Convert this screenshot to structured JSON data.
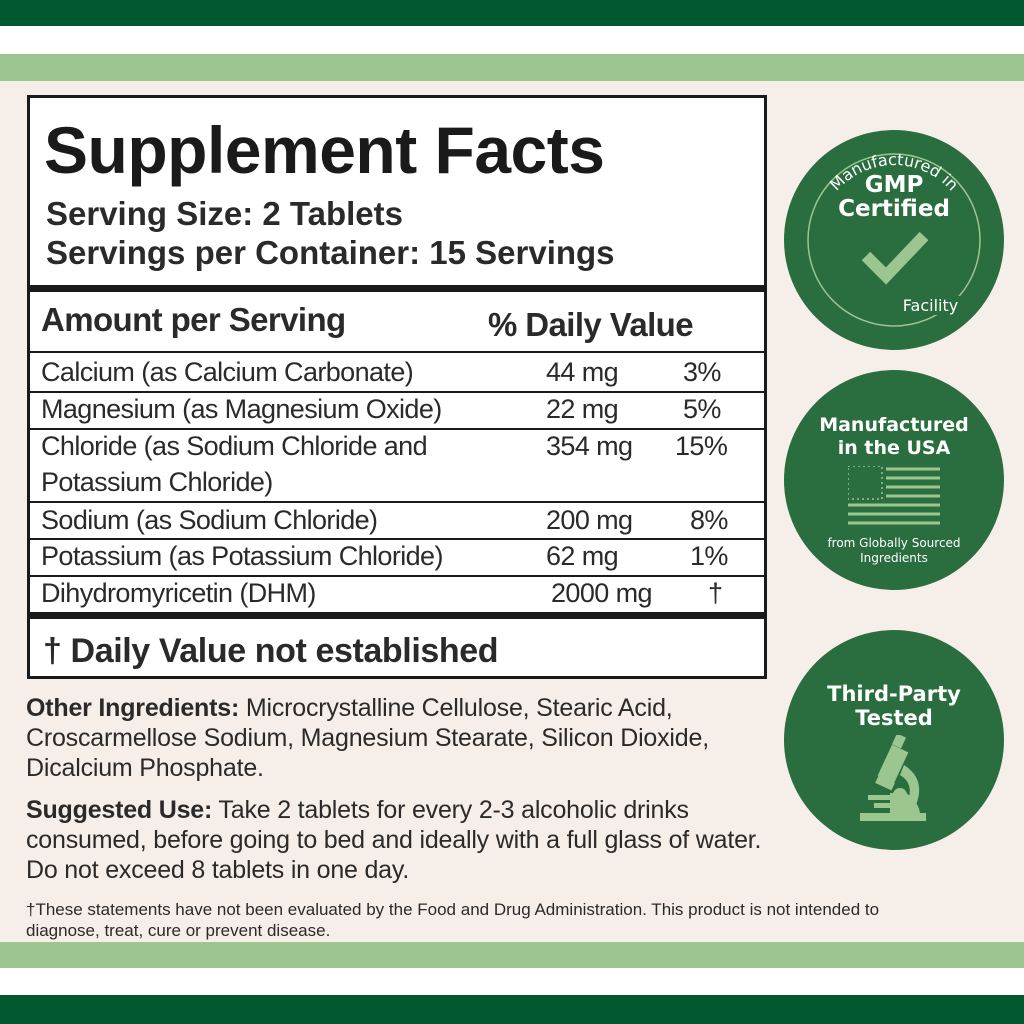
{
  "colors": {
    "dark_green": "#02582f",
    "light_green": "#9bc690",
    "badge_green": "#2a6e3f",
    "background": "#f6eee9"
  },
  "facts": {
    "title": "Supplement Facts",
    "serving_size": "Serving Size: 2 Tablets",
    "servings_per_container": "Servings per Container: 15 Servings",
    "amount_header": "Amount per Serving",
    "dv_header": "% Daily Value",
    "rows": [
      {
        "name": "Calcium (as Calcium Carbonate)",
        "amount": "44 mg",
        "dv": "3%"
      },
      {
        "name": "Magnesium (as Magnesium Oxide)",
        "amount": "22 mg",
        "dv": "5%"
      },
      {
        "name": "Chloride (as Sodium Chloride and",
        "name2": "Potassium Chloride)",
        "amount": "354 mg",
        "dv": "15%"
      },
      {
        "name": "Sodium (as Sodium Chloride)",
        "amount": "200 mg",
        "dv": "8%"
      },
      {
        "name": "Potassium (as Potassium Chloride)",
        "amount": "62 mg",
        "dv": "1%"
      },
      {
        "name": "Dihydromyricetin (DHM)",
        "amount": "2000 mg",
        "dv": "†"
      }
    ],
    "footnote": "† Daily Value not established"
  },
  "other_ingredients": {
    "label": "Other Ingredients:",
    "text": " Microcrystalline Cellulose, Stearic Acid, Croscarmellose Sodium, Magnesium Stearate, Silicon Dioxide, Dicalcium Phosphate."
  },
  "suggested_use": {
    "label": "Suggested Use:",
    "text": " Take 2 tablets for every 2-3 alcoholic drinks consumed, before going to bed and ideally with a full glass of water. Do not exceed 8 tablets in one day."
  },
  "disclaimer": "†These statements have not been evaluated by the Food and Drug Administration. This product is not intended to diagnose, treat, cure or prevent disease.",
  "badges": {
    "gmp": {
      "top": "Manufactured in",
      "main1": "GMP",
      "main2": "Certified",
      "bottom": "Facility",
      "icon": "checkmark-icon"
    },
    "usa": {
      "main1": "Manufactured",
      "main2": "in the USA",
      "sub1": "from Globally Sourced",
      "sub2": "Ingredients",
      "icon": "us-flag-icon"
    },
    "tested": {
      "main1": "Third-Party",
      "main2": "Tested",
      "icon": "microscope-icon"
    }
  }
}
